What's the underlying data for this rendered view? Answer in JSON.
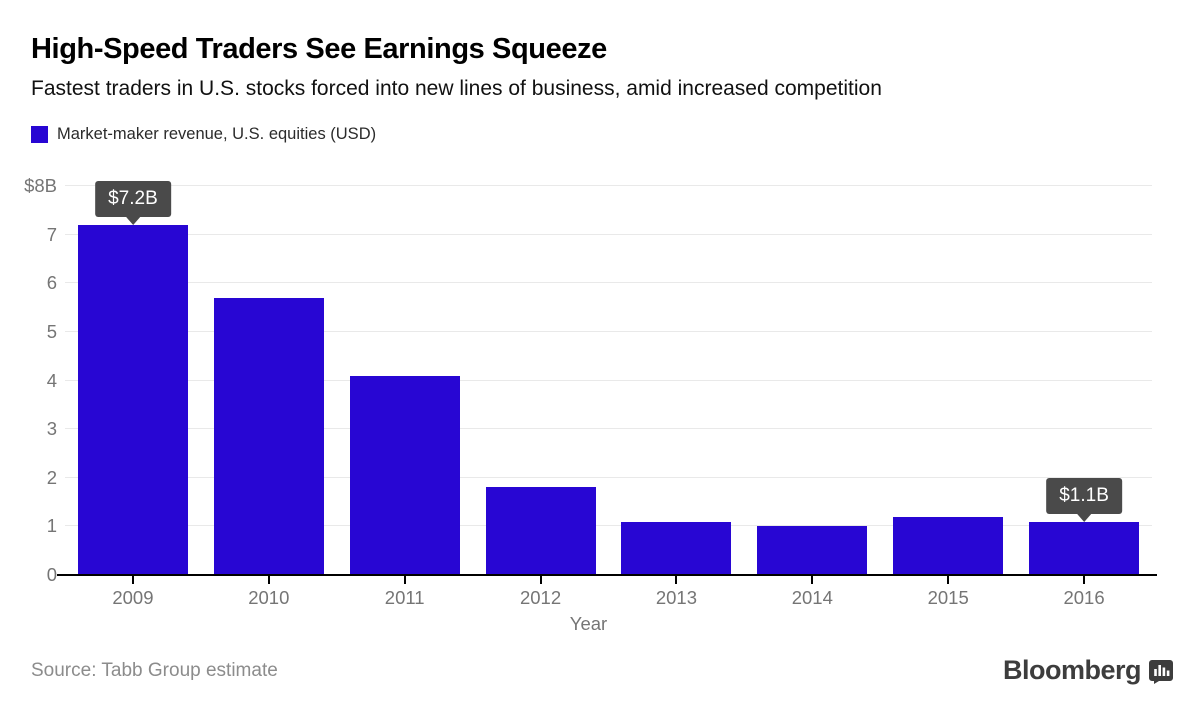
{
  "header": {
    "title": "High-Speed Traders See Earnings Squeeze",
    "subtitle": "Fastest traders in U.S. stocks forced into new lines of business, amid increased competition"
  },
  "legend": {
    "label": "Market-maker revenue, U.S. equities (USD)",
    "swatch_color": "#2806d3"
  },
  "chart_data": {
    "type": "bar",
    "title": "Market-maker revenue, U.S. equities (USD)",
    "categories": [
      "2009",
      "2010",
      "2011",
      "2012",
      "2013",
      "2014",
      "2015",
      "2016"
    ],
    "values": [
      7.2,
      5.7,
      4.1,
      1.8,
      1.1,
      1.0,
      1.2,
      1.1
    ],
    "xlabel": "Year",
    "ylabel": "",
    "ylim": [
      0,
      8
    ],
    "yticks": [
      {
        "value": 8,
        "label": "$8B"
      },
      {
        "value": 7,
        "label": "7"
      },
      {
        "value": 6,
        "label": "6"
      },
      {
        "value": 5,
        "label": "5"
      },
      {
        "value": 4,
        "label": "4"
      },
      {
        "value": 3,
        "label": "3"
      },
      {
        "value": 2,
        "label": "2"
      },
      {
        "value": 1,
        "label": "1"
      },
      {
        "value": 0,
        "label": "0"
      }
    ],
    "grid": true,
    "legend_position": "top-left",
    "bar_color": "#2806d3",
    "annotations": [
      {
        "category": "2009",
        "index": 0,
        "label": "$7.2B"
      },
      {
        "category": "2016",
        "index": 7,
        "label": "$1.1B"
      }
    ],
    "annotation_bg": "#4a4a4a",
    "annotation_text_color": "#ffffff"
  },
  "footer": {
    "source": "Source: Tabb Group estimate",
    "brand": "Bloomberg"
  }
}
